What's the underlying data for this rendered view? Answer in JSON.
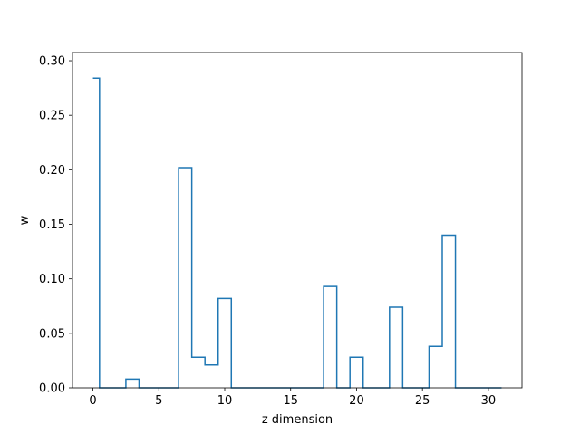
{
  "chart_data": {
    "type": "line",
    "drawstyle": "steps-mid",
    "title": "",
    "xlabel": "z dimension",
    "ylabel": "w",
    "xlim": [
      -1.55,
      32.55
    ],
    "ylim": [
      0,
      0.3075
    ],
    "x_ticks": [
      0,
      5,
      10,
      15,
      20,
      25,
      30
    ],
    "y_ticks": [
      "0.00",
      "0.05",
      "0.10",
      "0.15",
      "0.20",
      "0.25",
      "0.30"
    ],
    "grid": false,
    "legend": "none",
    "series": [
      {
        "color": "#1f77b4",
        "x": [
          0,
          1,
          2,
          3,
          4,
          5,
          6,
          7,
          8,
          9,
          10,
          11,
          12,
          13,
          14,
          15,
          16,
          17,
          18,
          19,
          20,
          21,
          22,
          23,
          24,
          25,
          26,
          27,
          28,
          29,
          30,
          31
        ],
        "values": [
          0.284,
          0,
          0,
          0.008,
          0,
          0,
          0,
          0.202,
          0.028,
          0.021,
          0.082,
          0,
          0,
          0,
          0,
          0,
          0,
          0,
          0.093,
          0,
          0.028,
          0,
          0,
          0.074,
          0,
          0,
          0.038,
          0.14,
          0,
          0,
          0,
          0
        ]
      }
    ]
  }
}
